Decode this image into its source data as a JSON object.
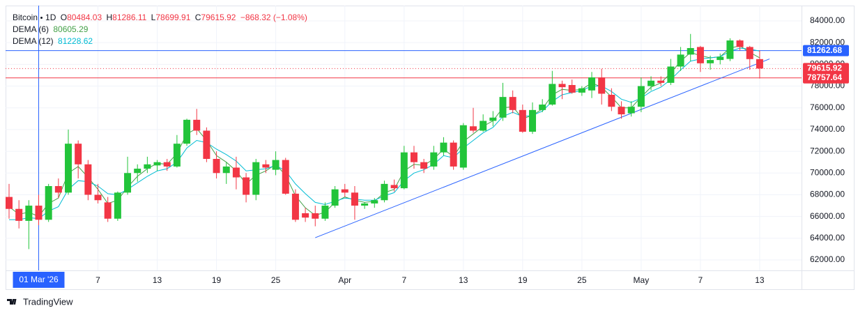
{
  "chart_data": {
    "type": "candlestick",
    "symbol": "Bitcoin",
    "interval": "1D",
    "ohlc_labels": [
      "O",
      "H",
      "L",
      "C"
    ],
    "change": "−868.32 (−1.08%)",
    "up_color": "#22c43a",
    "down_color": "#f23645",
    "categories": [
      null,
      null,
      null,
      "01 Mar '26",
      null,
      null,
      null,
      null,
      null,
      "7",
      null,
      null,
      null,
      null,
      null,
      "13",
      null,
      null,
      null,
      null,
      null,
      "19",
      null,
      null,
      null,
      null,
      null,
      "25",
      null,
      null,
      null,
      null,
      null,
      null,
      "Apr",
      null,
      null,
      null,
      null,
      null,
      "7",
      null,
      null,
      null,
      null,
      null,
      "13",
      null,
      null,
      null,
      null,
      null,
      "19",
      null,
      null,
      null,
      null,
      null,
      "25",
      null,
      null,
      null,
      null,
      null,
      "May",
      null,
      null,
      null,
      null,
      null,
      "7",
      null,
      null,
      null,
      null,
      null,
      "13"
    ],
    "open": [
      67800,
      66700,
      65600,
      67000,
      65700,
      68800,
      68200,
      72700,
      70800,
      68000,
      67300,
      65800,
      68200,
      70000,
      70400,
      70700,
      71000,
      70600,
      72700,
      74900,
      73900,
      71300,
      70000,
      70500,
      69600,
      68000,
      70800,
      70300,
      71200,
      68100,
      66300,
      66300,
      65800,
      67000,
      68500,
      68200,
      67000,
      67200,
      67500,
      68900,
      68600,
      71900,
      71000,
      70600,
      71900,
      72800,
      70500,
      74300,
      73900,
      74800,
      75100,
      77000,
      75800,
      73800,
      75800,
      76300,
      78200,
      78100,
      77400,
      77600,
      78800,
      77200,
      76100,
      75500,
      76100,
      78000,
      78500,
      78300,
      79800,
      80900,
      81600,
      80100,
      80400,
      80500,
      82200,
      81600,
      80484.03
    ],
    "high": [
      69000,
      67500,
      67500,
      68000,
      69000,
      69500,
      74000,
      73000,
      71200,
      69000,
      67800,
      68300,
      71500,
      70800,
      71500,
      71200,
      71300,
      73500,
      75000,
      75900,
      74200,
      72000,
      71000,
      71500,
      70000,
      71300,
      71200,
      72000,
      71400,
      68500,
      66800,
      67000,
      67300,
      68800,
      69000,
      68800,
      67300,
      67700,
      69300,
      69400,
      72500,
      72500,
      71300,
      72500,
      73300,
      73000,
      74600,
      76000,
      75400,
      75700,
      78300,
      77600,
      76300,
      76500,
      76800,
      79400,
      78500,
      78600,
      78000,
      79300,
      79600,
      77800,
      76600,
      76600,
      78800,
      78900,
      78900,
      80500,
      81600,
      82800,
      81700,
      80800,
      81000,
      82400,
      82300,
      81700,
      81286.11
    ],
    "low": [
      65800,
      64900,
      63000,
      65200,
      65500,
      67700,
      68000,
      69500,
      67500,
      67200,
      65500,
      65600,
      68000,
      69200,
      70000,
      70200,
      70200,
      70500,
      72500,
      73500,
      71000,
      69500,
      69000,
      68500,
      67300,
      67500,
      70000,
      69800,
      68000,
      65500,
      65500,
      65100,
      65600,
      66800,
      67800,
      65700,
      66700,
      66800,
      67300,
      68300,
      68500,
      70400,
      70000,
      70300,
      71600,
      70300,
      70300,
      73700,
      73800,
      74300,
      74800,
      75500,
      73700,
      73600,
      75600,
      76200,
      76800,
      77300,
      77100,
      76900,
      76300,
      75700,
      75000,
      75200,
      75600,
      77600,
      78000,
      78100,
      79400,
      80300,
      79300,
      79500,
      80000,
      80300,
      81300,
      79500,
      78699.91
    ],
    "close": [
      66700,
      65600,
      67000,
      65700,
      68800,
      68200,
      72700,
      70800,
      68000,
      67500,
      65800,
      68200,
      70000,
      70400,
      70800,
      71000,
      70600,
      72700,
      74900,
      73900,
      71300,
      70000,
      70600,
      69600,
      68000,
      71000,
      70500,
      71200,
      68100,
      65700,
      65900,
      65800,
      67000,
      68500,
      68200,
      67000,
      67200,
      67500,
      69000,
      68600,
      71900,
      71000,
      70400,
      71900,
      72800,
      70600,
      74400,
      73900,
      74800,
      75100,
      77000,
      75800,
      73800,
      75800,
      76300,
      78200,
      77900,
      77400,
      77800,
      78800,
      77300,
      76100,
      75400,
      76100,
      78000,
      78500,
      78300,
      79800,
      80900,
      81500,
      80100,
      80400,
      80700,
      82200,
      81600,
      80484.24,
      79615.92
    ],
    "series": [
      {
        "name": "DEMA (6)",
        "color": "#43a047",
        "values": [
          66900,
          66200,
          66400,
          66000,
          67200,
          67700,
          70000,
          70600,
          69600,
          68500,
          67200,
          67500,
          68700,
          69700,
          70400,
          70900,
          70800,
          71800,
          73600,
          74100,
          73000,
          71600,
          71000,
          70200,
          69000,
          69800,
          70200,
          70800,
          69800,
          67900,
          66800,
          66100,
          66400,
          67300,
          67800,
          67500,
          67300,
          67400,
          68200,
          68500,
          70200,
          70800,
          70700,
          71300,
          72200,
          71500,
          72900,
          73600,
          74300,
          74800,
          76000,
          76100,
          75000,
          75300,
          75900,
          77200,
          77700,
          77600,
          77700,
          78300,
          77900,
          77000,
          76000,
          76000,
          77000,
          77900,
          78300,
          79200,
          80300,
          81100,
          80800,
          80600,
          80700,
          81500,
          81700,
          81100,
          80605.29
        ]
      },
      {
        "name": "DEMA (12)",
        "color": "#00bcd4",
        "values": [
          65700,
          65700,
          65900,
          65800,
          66500,
          66900,
          68500,
          69300,
          69200,
          68800,
          68100,
          68000,
          68500,
          69100,
          69700,
          70200,
          70400,
          71000,
          72300,
          73000,
          72800,
          72200,
          71700,
          71100,
          70200,
          70300,
          70400,
          70700,
          70200,
          69000,
          68100,
          67300,
          67100,
          67400,
          67700,
          67600,
          67500,
          67500,
          67900,
          68200,
          69300,
          70000,
          70300,
          70800,
          71600,
          71400,
          72300,
          73000,
          73700,
          74200,
          75200,
          75600,
          75200,
          75300,
          75700,
          76600,
          77200,
          77400,
          77600,
          78000,
          78000,
          77500,
          76800,
          76500,
          76900,
          77500,
          77900,
          78600,
          79500,
          80300,
          80500,
          80600,
          80700,
          81200,
          81500,
          81400,
          81228.62
        ]
      }
    ],
    "trendline": {
      "x": [
        31,
        77
      ],
      "values": [
        64050,
        80500
      ],
      "color": "#2962ff"
    },
    "hlines": [
      {
        "value": 81262.68,
        "color": "#2962ff"
      },
      {
        "value": 78757.64,
        "color": "#f23645"
      }
    ],
    "crosshair": {
      "x": 3,
      "color": "#2962ff"
    },
    "ylim": [
      61040,
      85410
    ],
    "yticks": [
      {
        "value": 62000,
        "label": "62000.00"
      },
      {
        "value": 64000,
        "label": "64000.00"
      },
      {
        "value": 66000,
        "label": "66000.00"
      },
      {
        "value": 68000,
        "label": "68000.00"
      },
      {
        "value": 70000,
        "label": "70000.00"
      },
      {
        "value": 72000,
        "label": "72000.00"
      },
      {
        "value": 74000,
        "label": "74000.00"
      },
      {
        "value": 76000,
        "label": "76000.00"
      },
      {
        "value": 78000,
        "label": "78000.00"
      },
      {
        "value": 80000,
        "label": "80000.00"
      },
      {
        "value": 82000,
        "label": "82000.00"
      },
      {
        "value": 84000,
        "label": "84000.00"
      }
    ],
    "grid": true,
    "watermark": "TradingView"
  }
}
